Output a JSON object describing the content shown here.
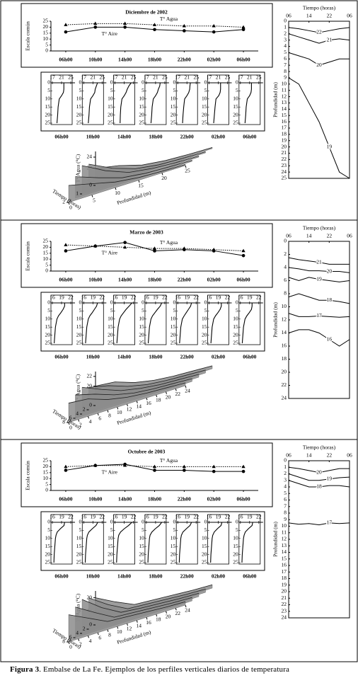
{
  "chart_data": [
    {
      "type": "line",
      "title": "Diciembre de 2002",
      "ylabel": "Escala común",
      "categories": [
        "06h00",
        "10h00",
        "14h00",
        "18h00",
        "22h00",
        "02h00",
        "06h00"
      ],
      "ylim": [
        0,
        25
      ],
      "yticks": [
        0,
        5,
        10,
        15,
        20,
        25
      ],
      "series": [
        {
          "name": "T° Agua",
          "color": "#000000",
          "linestyle": "dotted",
          "marker": "triangle",
          "values": [
            22,
            23,
            23,
            22,
            21,
            21,
            20
          ]
        },
        {
          "name": "T° Aire",
          "color": "#000000",
          "linestyle": "solid",
          "marker": "circle",
          "values": [
            16,
            20,
            20,
            18,
            17,
            16,
            18
          ]
        }
      ]
    },
    {
      "type": "profiles",
      "xlim": [
        17,
        25
      ],
      "xticks": [
        17,
        21,
        25
      ],
      "ylim": [
        0,
        25
      ],
      "yticks": [
        0,
        5,
        10,
        15,
        20,
        25
      ],
      "depth": [
        0,
        2,
        4,
        6,
        8,
        10,
        15,
        20,
        25
      ],
      "series": [
        {
          "name": "06h00",
          "values": [
            22,
            22,
            22,
            21.8,
            21,
            20,
            19.5,
            19.3,
            19
          ]
        },
        {
          "name": "10h00",
          "values": [
            23,
            22.5,
            22,
            21.8,
            21,
            20,
            19.5,
            19.3,
            19
          ]
        },
        {
          "name": "14h00",
          "values": [
            24,
            23,
            22.3,
            21.8,
            21,
            20,
            19.5,
            19.3,
            19.2
          ]
        },
        {
          "name": "18h00",
          "values": [
            23,
            22.8,
            22.2,
            21.8,
            21,
            20,
            19.5,
            19.3,
            19
          ]
        },
        {
          "name": "22h00",
          "values": [
            22.5,
            22.3,
            22.2,
            21.8,
            21,
            20,
            19.6,
            19.3,
            19.1
          ]
        },
        {
          "name": "02h00",
          "values": [
            22,
            22,
            22,
            21.8,
            21.2,
            20,
            19.6,
            19.3,
            19
          ]
        },
        {
          "name": "06h00",
          "values": [
            21.8,
            21.8,
            21.8,
            21.6,
            21,
            20,
            19.5,
            19.3,
            19
          ]
        }
      ]
    },
    {
      "type": "surface",
      "zlabel": "T° Agua (°C)",
      "xlabel": "Profundidad (m)",
      "tlabel": "Tiempo (horas)",
      "zlim": [
        19,
        25
      ],
      "zticks": [
        20,
        22,
        24
      ],
      "xlim": [
        0,
        25
      ],
      "xticks": [
        0,
        5,
        10,
        15,
        20,
        25
      ],
      "tlim": [
        0,
        2
      ],
      "tticks": [
        0,
        1,
        2
      ],
      "x": [
        0,
        5,
        10,
        15,
        20,
        25
      ],
      "t": [
        0,
        0.5,
        1,
        1.5,
        2
      ],
      "values": [
        [
          22,
          21.2,
          20,
          19.5,
          19.3,
          19.2
        ],
        [
          23.5,
          21.5,
          20.1,
          19.5,
          19.3,
          19.2
        ],
        [
          24,
          21.8,
          20.2,
          19.6,
          19.3,
          19.2
        ],
        [
          22.8,
          21.3,
          20,
          19.5,
          19.3,
          19.2
        ],
        [
          22,
          21,
          20,
          19.5,
          19.3,
          19.2
        ]
      ]
    },
    {
      "type": "contour",
      "title": "Tiempo (horas)",
      "ylabel": "Profundidad (m)",
      "xlim": [
        0,
        24
      ],
      "xticks": [
        {
          "value": 0,
          "label": "06"
        },
        {
          "value": 8,
          "label": "14"
        },
        {
          "value": 16,
          "label": "22"
        },
        {
          "value": 24,
          "label": "06"
        }
      ],
      "ylim": [
        0,
        25
      ],
      "yticks": [
        0,
        1,
        2,
        3,
        4,
        5,
        6,
        7,
        8,
        9,
        10,
        11,
        12,
        13,
        14,
        15,
        16,
        17,
        18,
        19,
        20,
        21,
        22,
        23,
        24,
        25
      ],
      "x": [
        0,
        4,
        8,
        12,
        16,
        20,
        24
      ],
      "series": [
        {
          "level": 22,
          "values": [
            1,
            1.2,
            1.5,
            1.8,
            1.5,
            1.2,
            1
          ]
        },
        {
          "level": 21,
          "values": [
            2,
            2.5,
            3,
            3.5,
            3,
            2.8,
            3
          ]
        },
        {
          "level": 20,
          "values": [
            5,
            5.5,
            6,
            7,
            6.5,
            6,
            6
          ]
        },
        {
          "level": 19,
          "values": [
            9,
            10,
            13,
            16,
            20,
            24,
            25
          ]
        }
      ]
    },
    {
      "type": "line",
      "title": "Marzo de 2003",
      "ylabel": "Escala común",
      "categories": [
        "06h00",
        "10h00",
        "14h00",
        "18h00",
        "22h00",
        "02h00",
        "06h00"
      ],
      "ylim": [
        0,
        25
      ],
      "yticks": [
        0,
        5,
        10,
        15,
        20,
        25
      ],
      "series": [
        {
          "name": "T° Agua",
          "color": "#000000",
          "linestyle": "dotted",
          "marker": "triangle",
          "values": [
            22,
            21,
            20,
            19,
            19,
            18,
            17
          ]
        },
        {
          "name": "T° Aire",
          "color": "#000000",
          "linestyle": "solid",
          "marker": "circle",
          "values": [
            17,
            21,
            24,
            17,
            18,
            17,
            13
          ]
        }
      ]
    },
    {
      "type": "profiles",
      "xlim": [
        16,
        22
      ],
      "xticks": [
        16,
        19,
        22
      ],
      "ylim": [
        0,
        25
      ],
      "yticks": [
        0,
        5,
        10,
        15,
        20,
        25
      ],
      "depth": [
        0,
        2,
        4,
        6,
        8,
        10,
        15,
        20,
        25
      ],
      "series": [
        {
          "name": "06h00",
          "values": [
            20,
            20,
            19.5,
            18.8,
            18,
            17.5,
            17,
            16.8,
            16.6
          ]
        },
        {
          "name": "10h00",
          "values": [
            20.5,
            20.2,
            19.5,
            18.8,
            18,
            17.5,
            17,
            16.8,
            16.6
          ]
        },
        {
          "name": "14h00",
          "values": [
            21.5,
            20.6,
            19.6,
            18.8,
            18,
            17.5,
            17,
            16.8,
            16.6
          ]
        },
        {
          "name": "18h00",
          "values": [
            21,
            20.5,
            19.6,
            18.8,
            18,
            17.5,
            17,
            16.8,
            16.6
          ]
        },
        {
          "name": "22h00",
          "values": [
            20.5,
            20.2,
            19.5,
            18.8,
            18.1,
            17.5,
            17,
            16.8,
            16.6
          ]
        },
        {
          "name": "02h00",
          "values": [
            20,
            20,
            19.6,
            18.9,
            18.1,
            17.5,
            17,
            16.8,
            16.6
          ]
        },
        {
          "name": "06h00",
          "values": [
            19.8,
            19.8,
            19.6,
            18.9,
            18.1,
            17.5,
            17,
            16.8,
            16.6
          ]
        }
      ]
    },
    {
      "type": "surface",
      "zlabel": "T° Agua (°C)",
      "xlabel": "Profundidad (m)",
      "tlabel": "Tiempo (horas)",
      "zlim": [
        16,
        23
      ],
      "zticks": [
        18,
        20,
        22
      ],
      "xlim": [
        0,
        24
      ],
      "xticks": [
        0,
        2,
        4,
        6,
        8,
        10,
        12,
        14,
        16,
        18,
        20,
        22,
        24
      ],
      "tlim": [
        0,
        8
      ],
      "tticks": [
        0,
        2,
        4,
        6,
        8
      ],
      "x": [
        0,
        4,
        8,
        12,
        16,
        20,
        24
      ],
      "t": [
        0,
        2,
        4,
        6,
        8
      ],
      "values": [
        [
          20,
          19.6,
          18.2,
          17.4,
          17,
          16.8,
          16.6
        ],
        [
          20.6,
          19.7,
          18.3,
          17.4,
          17,
          16.8,
          16.6
        ],
        [
          21.5,
          19.8,
          18.3,
          17.5,
          17,
          16.8,
          16.6
        ],
        [
          20.8,
          19.7,
          18.3,
          17.4,
          17,
          16.8,
          16.6
        ],
        [
          20,
          19.6,
          18.2,
          17.4,
          17,
          16.8,
          16.6
        ]
      ]
    },
    {
      "type": "contour",
      "title": "Tiempo (horas)",
      "ylabel": "Profundidad (m)",
      "xlim": [
        0,
        24
      ],
      "xticks": [
        {
          "value": 0,
          "label": "06"
        },
        {
          "value": 8,
          "label": "14"
        },
        {
          "value": 16,
          "label": "22"
        },
        {
          "value": 24,
          "label": "06"
        }
      ],
      "ylim": [
        0,
        24
      ],
      "yticks": [
        0,
        2,
        4,
        6,
        8,
        10,
        12,
        14,
        16,
        18,
        20,
        22,
        24
      ],
      "x": [
        0,
        4,
        8,
        12,
        16,
        20,
        24
      ],
      "series": [
        {
          "level": 21,
          "values": [
            2.5,
            2.8,
            3,
            3.2,
            3.5,
            3.5,
            3.5
          ]
        },
        {
          "level": 20,
          "values": [
            4,
            4.2,
            4.5,
            4.5,
            4.6,
            4.6,
            4.8
          ]
        },
        {
          "level": 19,
          "values": [
            5.5,
            6,
            5.5,
            5.8,
            6,
            6.2,
            6
          ]
        },
        {
          "level": 18,
          "values": [
            8.5,
            8,
            8.5,
            9,
            9,
            9.2,
            9.5
          ]
        },
        {
          "level": 17,
          "values": [
            11,
            11.5,
            11.5,
            11.4,
            11.5,
            11.6,
            11.5
          ]
        },
        {
          "level": 16,
          "values": [
            14,
            13.5,
            13.5,
            14,
            15,
            16,
            15
          ]
        }
      ]
    },
    {
      "type": "line",
      "title": "Octubre de 2003",
      "ylabel": "Escala común",
      "categories": [
        "06h00",
        "10h00",
        "14h00",
        "18h00",
        "22h00",
        "02h00",
        "06h00"
      ],
      "ylim": [
        0,
        25
      ],
      "yticks": [
        0,
        5,
        10,
        15,
        20,
        25
      ],
      "series": [
        {
          "name": "T° Agua",
          "color": "#000000",
          "linestyle": "dotted",
          "marker": "triangle",
          "values": [
            20,
            21,
            21,
            20,
            20,
            20,
            20
          ]
        },
        {
          "name": "T° Aire",
          "color": "#000000",
          "linestyle": "solid",
          "marker": "circle",
          "values": [
            17,
            21,
            22,
            17,
            17,
            16,
            16
          ]
        }
      ]
    },
    {
      "type": "profiles",
      "xlim": [
        16,
        22
      ],
      "xticks": [
        16,
        19,
        22
      ],
      "ylim": [
        0,
        25
      ],
      "yticks": [
        0,
        5,
        10,
        15,
        20,
        25
      ],
      "depth": [
        0,
        2,
        4,
        6,
        8,
        10,
        15,
        20,
        25
      ],
      "series": [
        {
          "name": "06h00",
          "values": [
            20,
            19.8,
            18.6,
            17.6,
            17.2,
            17,
            16.8,
            16.6,
            16.5
          ]
        },
        {
          "name": "10h00",
          "values": [
            20.6,
            20,
            18.8,
            17.7,
            17.2,
            17,
            16.8,
            16.6,
            16.5
          ]
        },
        {
          "name": "14h00",
          "values": [
            21.5,
            20.4,
            19,
            17.8,
            17.2,
            17,
            16.8,
            16.6,
            16.5
          ]
        },
        {
          "name": "18h00",
          "values": [
            21,
            20.2,
            18.9,
            17.8,
            17.2,
            17,
            16.8,
            16.6,
            16.5
          ]
        },
        {
          "name": "22h00",
          "values": [
            20.5,
            20,
            18.8,
            17.7,
            17.2,
            17,
            16.8,
            16.6,
            16.5
          ]
        },
        {
          "name": "02h00",
          "values": [
            20.2,
            19.9,
            18.7,
            17.7,
            17.2,
            17,
            16.8,
            16.6,
            16.5
          ]
        },
        {
          "name": "06h00",
          "values": [
            20,
            19.8,
            18.6,
            17.6,
            17.2,
            17,
            16.8,
            16.6,
            16.5
          ]
        }
      ]
    },
    {
      "type": "surface",
      "zlabel": "T° Agua (°C)",
      "xlabel": "Profundidad (m)",
      "tlabel": "Tiempo (horas)",
      "zlim": [
        16,
        21
      ],
      "zticks": [
        18,
        20
      ],
      "xlim": [
        0,
        24
      ],
      "xticks": [
        0,
        2,
        4,
        6,
        8,
        10,
        12,
        14,
        16,
        18,
        20,
        22,
        24
      ],
      "tlim": [
        0,
        8
      ],
      "tticks": [
        0,
        2,
        4,
        6,
        8
      ],
      "x": [
        0,
        4,
        8,
        12,
        16,
        20,
        24
      ],
      "t": [
        0,
        2,
        4,
        6,
        8
      ],
      "values": [
        [
          20,
          18.5,
          17.2,
          17,
          16.8,
          16.6,
          16.5
        ],
        [
          20.6,
          18.7,
          17.2,
          17,
          16.8,
          16.6,
          16.5
        ],
        [
          21,
          18.9,
          17.3,
          17,
          16.8,
          16.6,
          16.5
        ],
        [
          20.5,
          18.8,
          17.2,
          17,
          16.8,
          16.6,
          16.5
        ],
        [
          20,
          18.6,
          17.2,
          17,
          16.8,
          16.6,
          16.5
        ]
      ]
    },
    {
      "type": "contour",
      "title": "Tiempo (horas)",
      "ylabel": "Profundidad (m)",
      "xlim": [
        0,
        24
      ],
      "xticks": [
        {
          "value": 0,
          "label": "06"
        },
        {
          "value": 8,
          "label": "14"
        },
        {
          "value": 16,
          "label": "22"
        },
        {
          "value": 24,
          "label": "06"
        }
      ],
      "ylim": [
        0,
        24
      ],
      "yticks": [
        0,
        1,
        2,
        3,
        4,
        5,
        6,
        7,
        8,
        9,
        10,
        11,
        12,
        13,
        14,
        15,
        16,
        17,
        18,
        19,
        20,
        21,
        22,
        23,
        24
      ],
      "x": [
        0,
        4,
        8,
        12,
        16,
        20,
        24
      ],
      "series": [
        {
          "level": 20,
          "values": [
            1,
            1.2,
            1.5,
            1.8,
            1.5,
            1.2,
            1.2
          ]
        },
        {
          "level": 19,
          "values": [
            2,
            2.5,
            3,
            3,
            2.8,
            2.6,
            2.5
          ]
        },
        {
          "level": 18,
          "values": [
            3,
            3.5,
            4,
            4,
            3.8,
            3.8,
            4
          ]
        },
        {
          "level": 17,
          "values": [
            9.5,
            9.7,
            9.6,
            9.8,
            9.5,
            9.6,
            9.5
          ]
        }
      ]
    }
  ],
  "caption": {
    "label": "Figura 3",
    "text": ". Embalse de La Fe. Ejemplos de los perfiles verticales diarios de temperatura"
  }
}
